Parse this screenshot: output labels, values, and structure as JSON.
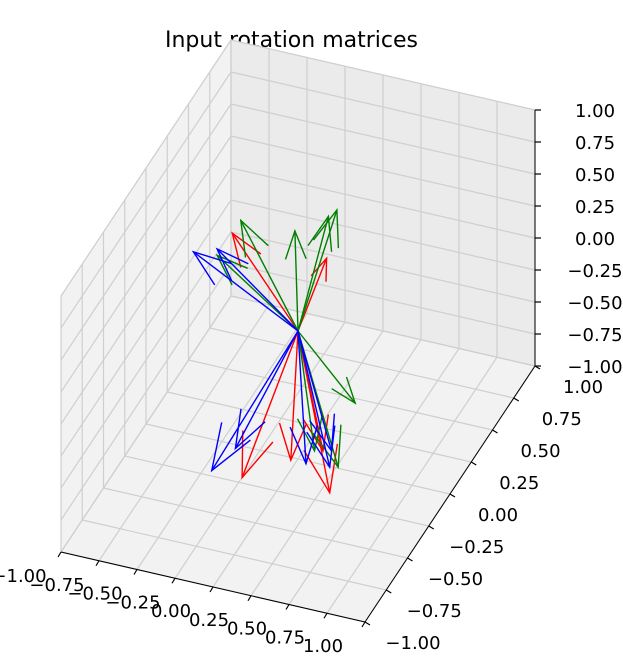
{
  "chart_data": {
    "type": "3d-quiver",
    "title": "Input rotation matrices",
    "xlim": [
      -1.0,
      1.0
    ],
    "ylim": [
      -1.0,
      1.0
    ],
    "zlim": [
      -1.0,
      1.0
    ],
    "x_ticks": [
      "−1.00",
      "−0.75",
      "−0.50",
      "−0.25",
      "0.00",
      "0.25",
      "0.50",
      "0.75",
      "1.00"
    ],
    "y_ticks": [
      "−1.00",
      "−0.75",
      "−0.50",
      "−0.25",
      "0.00",
      "0.25",
      "0.50",
      "0.75",
      "1.00"
    ],
    "z_ticks": [
      "−1.00",
      "−0.75",
      "−0.50",
      "−0.25",
      "0.00",
      "0.25",
      "0.50",
      "0.75",
      "1.00"
    ],
    "grid": true,
    "origin": [
      0,
      0,
      0
    ],
    "series_colors": {
      "x_axis_vectors": "#ff0000",
      "y_axis_vectors": "#008000",
      "z_axis_vectors": "#0000ff"
    },
    "arrows_approx_direction": {
      "red": [
        [
          0.3,
          -0.2,
          0.85
        ],
        [
          -0.6,
          0.3,
          0.3
        ],
        [
          0.6,
          -0.7,
          -0.4
        ],
        [
          -0.2,
          -0.3,
          -0.9
        ],
        [
          0.5,
          -0.6,
          -0.2
        ],
        [
          0.4,
          -0.8,
          -0.1
        ]
      ],
      "green": [
        [
          0.2,
          0.0,
          0.95
        ],
        [
          0.2,
          0.1,
          0.9
        ],
        [
          -0.6,
          0.4,
          0.3
        ],
        [
          -0.3,
          0.5,
          0.2
        ],
        [
          0.6,
          -0.4,
          0.0
        ],
        [
          0.5,
          -0.7,
          -0.1
        ],
        [
          0.6,
          -0.6,
          -0.3
        ],
        [
          -0.7,
          0.3,
          0.1
        ]
      ],
      "blue": [
        [
          -0.7,
          0.3,
          0.15
        ],
        [
          -0.8,
          0.2,
          0.2
        ],
        [
          -0.4,
          -0.3,
          -0.9
        ],
        [
          -0.3,
          -0.2,
          -0.8
        ],
        [
          0.6,
          -0.7,
          -0.2
        ],
        [
          0.5,
          -0.8,
          -0.1
        ],
        [
          0.5,
          -0.5,
          -0.3
        ]
      ]
    }
  }
}
